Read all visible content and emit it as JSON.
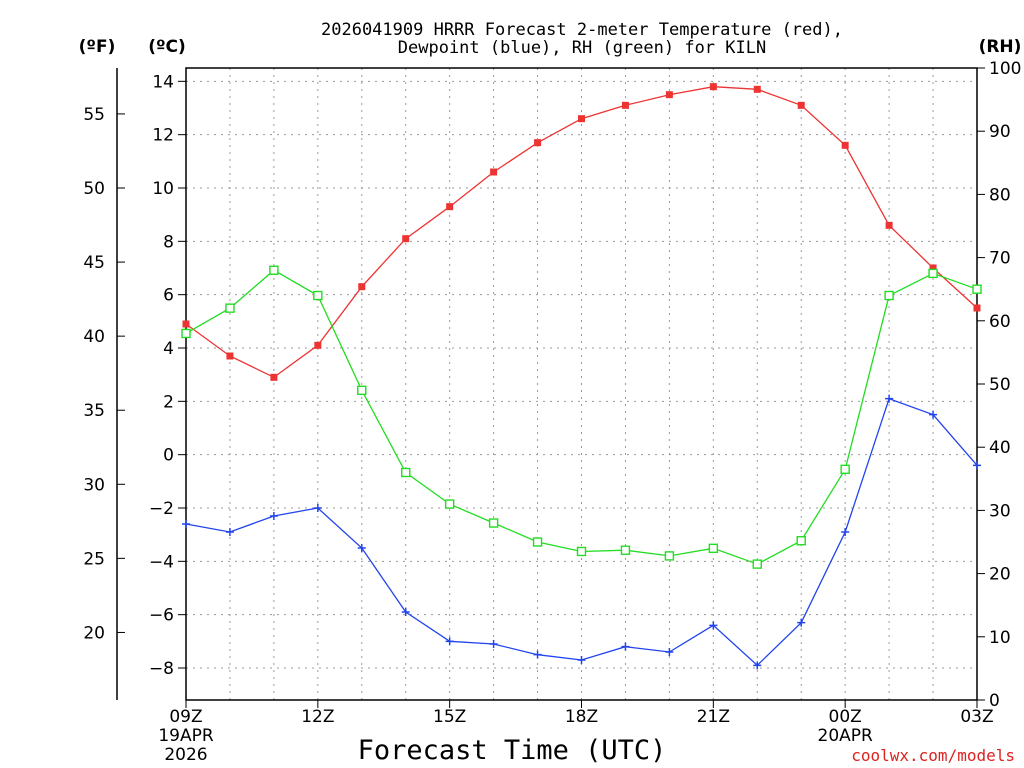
{
  "chart_data": {
    "type": "line",
    "title_lines": [
      "2026041909 HRRR Forecast 2-meter Temperature (red),",
      "Dewpoint (blue), RH (green) for KILN"
    ],
    "units": {
      "fahrenheit": "(ºF)",
      "celsius": "(ºC)",
      "rh": "(RH)"
    },
    "xlabel": "Forecast Time (UTC)",
    "credit": "coolwx.com/models",
    "x_hours": [
      0,
      1,
      2,
      3,
      4,
      5,
      6,
      7,
      8,
      9,
      10,
      11,
      12,
      13,
      14,
      15,
      16,
      17,
      18
    ],
    "xlim": [
      0,
      18
    ],
    "x_ticks": [
      {
        "hour": 0,
        "lines": [
          "09Z",
          "19APR",
          "2026"
        ]
      },
      {
        "hour": 3,
        "lines": [
          "12Z"
        ]
      },
      {
        "hour": 6,
        "lines": [
          "15Z"
        ]
      },
      {
        "hour": 9,
        "lines": [
          "18Z"
        ]
      },
      {
        "hour": 12,
        "lines": [
          "21Z"
        ]
      },
      {
        "hour": 15,
        "lines": [
          "00Z",
          "20APR"
        ]
      },
      {
        "hour": 18,
        "lines": [
          "03Z"
        ]
      }
    ],
    "y_celsius": {
      "ylim": [
        -9.2,
        14.5
      ],
      "ticks": [
        14,
        12,
        10,
        8,
        6,
        4,
        2,
        0,
        -2,
        -4,
        -6,
        -8
      ],
      "tick_labels": [
        "14",
        "12",
        "10",
        "8",
        "6",
        "4",
        "2",
        "0",
        "−2",
        "−4",
        "−6",
        "−8"
      ]
    },
    "y_fahrenheit": {
      "ticks": [
        55,
        50,
        45,
        40,
        35,
        30,
        25,
        20
      ],
      "tick_labels": [
        "55",
        "50",
        "45",
        "40",
        "35",
        "30",
        "25",
        "20"
      ]
    },
    "y_rh": {
      "ylim": [
        0,
        100
      ],
      "ticks": [
        100,
        90,
        80,
        70,
        60,
        50,
        40,
        30,
        20,
        10,
        0
      ],
      "tick_labels": [
        "100",
        "90",
        "80",
        "70",
        "60",
        "50",
        "40",
        "30",
        "20",
        "10",
        "0"
      ]
    },
    "series": [
      {
        "name": "2-meter Temperature",
        "axis": "celsius",
        "color": "#ee3333",
        "marker": "filled-square",
        "values": [
          4.9,
          3.7,
          2.9,
          4.1,
          6.3,
          8.1,
          9.3,
          10.6,
          11.7,
          12.6,
          13.1,
          13.5,
          13.8,
          13.7,
          13.1,
          11.6,
          8.6,
          7.0,
          5.5
        ]
      },
      {
        "name": "Dewpoint",
        "axis": "celsius",
        "color": "#2244ee",
        "marker": "plus",
        "values": [
          -2.6,
          -2.9,
          -2.3,
          -2.0,
          -3.5,
          -5.9,
          -7.0,
          -7.1,
          -7.5,
          -7.7,
          -7.2,
          -7.4,
          -6.4,
          -7.9,
          -6.3,
          -2.9,
          2.1,
          1.5,
          -0.4
        ]
      },
      {
        "name": "RH",
        "axis": "rh",
        "color": "#22dd22",
        "marker": "open-square",
        "values": [
          58,
          62,
          68,
          64,
          49,
          36,
          31,
          28,
          25,
          23.5,
          23.7,
          22.8,
          24,
          21.5,
          25.2,
          36.5,
          64,
          67.5,
          65
        ]
      }
    ]
  }
}
